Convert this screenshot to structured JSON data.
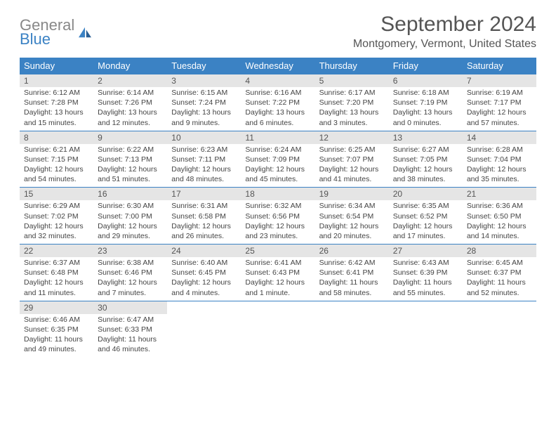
{
  "logo": {
    "text1": "General",
    "text2": "Blue"
  },
  "title": "September 2024",
  "location": "Montgomery, Vermont, United States",
  "colors": {
    "header_bg": "#3b82c4",
    "header_text": "#ffffff",
    "daynum_bg": "#e5e5e5",
    "week_border": "#3b82c4",
    "body_text": "#444444",
    "title_color": "#555555"
  },
  "day_names": [
    "Sunday",
    "Monday",
    "Tuesday",
    "Wednesday",
    "Thursday",
    "Friday",
    "Saturday"
  ],
  "days": [
    {
      "n": 1,
      "sunrise": "6:12 AM",
      "sunset": "7:28 PM",
      "daylight": "13 hours and 15 minutes."
    },
    {
      "n": 2,
      "sunrise": "6:14 AM",
      "sunset": "7:26 PM",
      "daylight": "13 hours and 12 minutes."
    },
    {
      "n": 3,
      "sunrise": "6:15 AM",
      "sunset": "7:24 PM",
      "daylight": "13 hours and 9 minutes."
    },
    {
      "n": 4,
      "sunrise": "6:16 AM",
      "sunset": "7:22 PM",
      "daylight": "13 hours and 6 minutes."
    },
    {
      "n": 5,
      "sunrise": "6:17 AM",
      "sunset": "7:20 PM",
      "daylight": "13 hours and 3 minutes."
    },
    {
      "n": 6,
      "sunrise": "6:18 AM",
      "sunset": "7:19 PM",
      "daylight": "13 hours and 0 minutes."
    },
    {
      "n": 7,
      "sunrise": "6:19 AM",
      "sunset": "7:17 PM",
      "daylight": "12 hours and 57 minutes."
    },
    {
      "n": 8,
      "sunrise": "6:21 AM",
      "sunset": "7:15 PM",
      "daylight": "12 hours and 54 minutes."
    },
    {
      "n": 9,
      "sunrise": "6:22 AM",
      "sunset": "7:13 PM",
      "daylight": "12 hours and 51 minutes."
    },
    {
      "n": 10,
      "sunrise": "6:23 AM",
      "sunset": "7:11 PM",
      "daylight": "12 hours and 48 minutes."
    },
    {
      "n": 11,
      "sunrise": "6:24 AM",
      "sunset": "7:09 PM",
      "daylight": "12 hours and 45 minutes."
    },
    {
      "n": 12,
      "sunrise": "6:25 AM",
      "sunset": "7:07 PM",
      "daylight": "12 hours and 41 minutes."
    },
    {
      "n": 13,
      "sunrise": "6:27 AM",
      "sunset": "7:05 PM",
      "daylight": "12 hours and 38 minutes."
    },
    {
      "n": 14,
      "sunrise": "6:28 AM",
      "sunset": "7:04 PM",
      "daylight": "12 hours and 35 minutes."
    },
    {
      "n": 15,
      "sunrise": "6:29 AM",
      "sunset": "7:02 PM",
      "daylight": "12 hours and 32 minutes."
    },
    {
      "n": 16,
      "sunrise": "6:30 AM",
      "sunset": "7:00 PM",
      "daylight": "12 hours and 29 minutes."
    },
    {
      "n": 17,
      "sunrise": "6:31 AM",
      "sunset": "6:58 PM",
      "daylight": "12 hours and 26 minutes."
    },
    {
      "n": 18,
      "sunrise": "6:32 AM",
      "sunset": "6:56 PM",
      "daylight": "12 hours and 23 minutes."
    },
    {
      "n": 19,
      "sunrise": "6:34 AM",
      "sunset": "6:54 PM",
      "daylight": "12 hours and 20 minutes."
    },
    {
      "n": 20,
      "sunrise": "6:35 AM",
      "sunset": "6:52 PM",
      "daylight": "12 hours and 17 minutes."
    },
    {
      "n": 21,
      "sunrise": "6:36 AM",
      "sunset": "6:50 PM",
      "daylight": "12 hours and 14 minutes."
    },
    {
      "n": 22,
      "sunrise": "6:37 AM",
      "sunset": "6:48 PM",
      "daylight": "12 hours and 11 minutes."
    },
    {
      "n": 23,
      "sunrise": "6:38 AM",
      "sunset": "6:46 PM",
      "daylight": "12 hours and 7 minutes."
    },
    {
      "n": 24,
      "sunrise": "6:40 AM",
      "sunset": "6:45 PM",
      "daylight": "12 hours and 4 minutes."
    },
    {
      "n": 25,
      "sunrise": "6:41 AM",
      "sunset": "6:43 PM",
      "daylight": "12 hours and 1 minute."
    },
    {
      "n": 26,
      "sunrise": "6:42 AM",
      "sunset": "6:41 PM",
      "daylight": "11 hours and 58 minutes."
    },
    {
      "n": 27,
      "sunrise": "6:43 AM",
      "sunset": "6:39 PM",
      "daylight": "11 hours and 55 minutes."
    },
    {
      "n": 28,
      "sunrise": "6:45 AM",
      "sunset": "6:37 PM",
      "daylight": "11 hours and 52 minutes."
    },
    {
      "n": 29,
      "sunrise": "6:46 AM",
      "sunset": "6:35 PM",
      "daylight": "11 hours and 49 minutes."
    },
    {
      "n": 30,
      "sunrise": "6:47 AM",
      "sunset": "6:33 PM",
      "daylight": "11 hours and 46 minutes."
    }
  ],
  "labels": {
    "sunrise": "Sunrise:",
    "sunset": "Sunset:",
    "daylight": "Daylight:"
  }
}
